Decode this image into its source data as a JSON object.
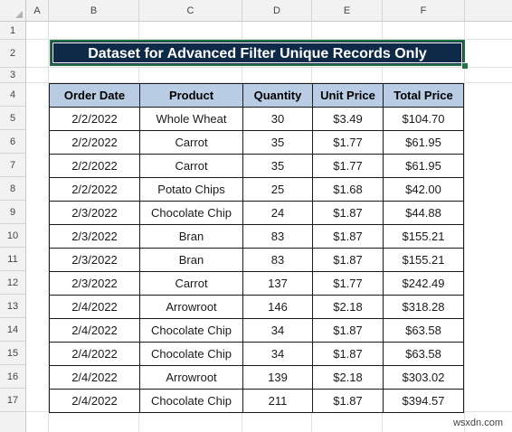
{
  "columns": [
    "A",
    "B",
    "C",
    "D",
    "E",
    "F"
  ],
  "rows": [
    "1",
    "2",
    "3",
    "4",
    "5",
    "6",
    "7",
    "8",
    "9",
    "10",
    "11",
    "12",
    "13",
    "14",
    "15",
    "16",
    "17"
  ],
  "title": "Dataset for Advanced Filter Unique Records Only",
  "table": {
    "headers": [
      "Order Date",
      "Product",
      "Quantity",
      "Unit Price",
      "Total Price"
    ],
    "rows": [
      [
        "2/2/2022",
        "Whole Wheat",
        "30",
        "$3.49",
        "$104.70"
      ],
      [
        "2/2/2022",
        "Carrot",
        "35",
        "$1.77",
        "$61.95"
      ],
      [
        "2/2/2022",
        "Carrot",
        "35",
        "$1.77",
        "$61.95"
      ],
      [
        "2/2/2022",
        "Potato Chips",
        "25",
        "$1.68",
        "$42.00"
      ],
      [
        "2/3/2022",
        "Chocolate Chip",
        "24",
        "$1.87",
        "$44.88"
      ],
      [
        "2/3/2022",
        "Bran",
        "83",
        "$1.87",
        "$155.21"
      ],
      [
        "2/3/2022",
        "Bran",
        "83",
        "$1.87",
        "$155.21"
      ],
      [
        "2/3/2022",
        "Carrot",
        "137",
        "$1.77",
        "$242.49"
      ],
      [
        "2/4/2022",
        "Arrowroot",
        "146",
        "$2.18",
        "$318.28"
      ],
      [
        "2/4/2022",
        "Chocolate Chip",
        "34",
        "$1.87",
        "$63.58"
      ],
      [
        "2/4/2022",
        "Chocolate Chip",
        "34",
        "$1.87",
        "$63.58"
      ],
      [
        "2/4/2022",
        "Arrowroot",
        "139",
        "$2.18",
        "$303.02"
      ],
      [
        "2/4/2022",
        "Chocolate Chip",
        "211",
        "$1.87",
        "$394.57"
      ]
    ]
  },
  "watermark": "wsxdn.com",
  "colors": {
    "title_bg": "#0e2a48",
    "header_bg": "#b8cce4",
    "selection": "#217346"
  }
}
